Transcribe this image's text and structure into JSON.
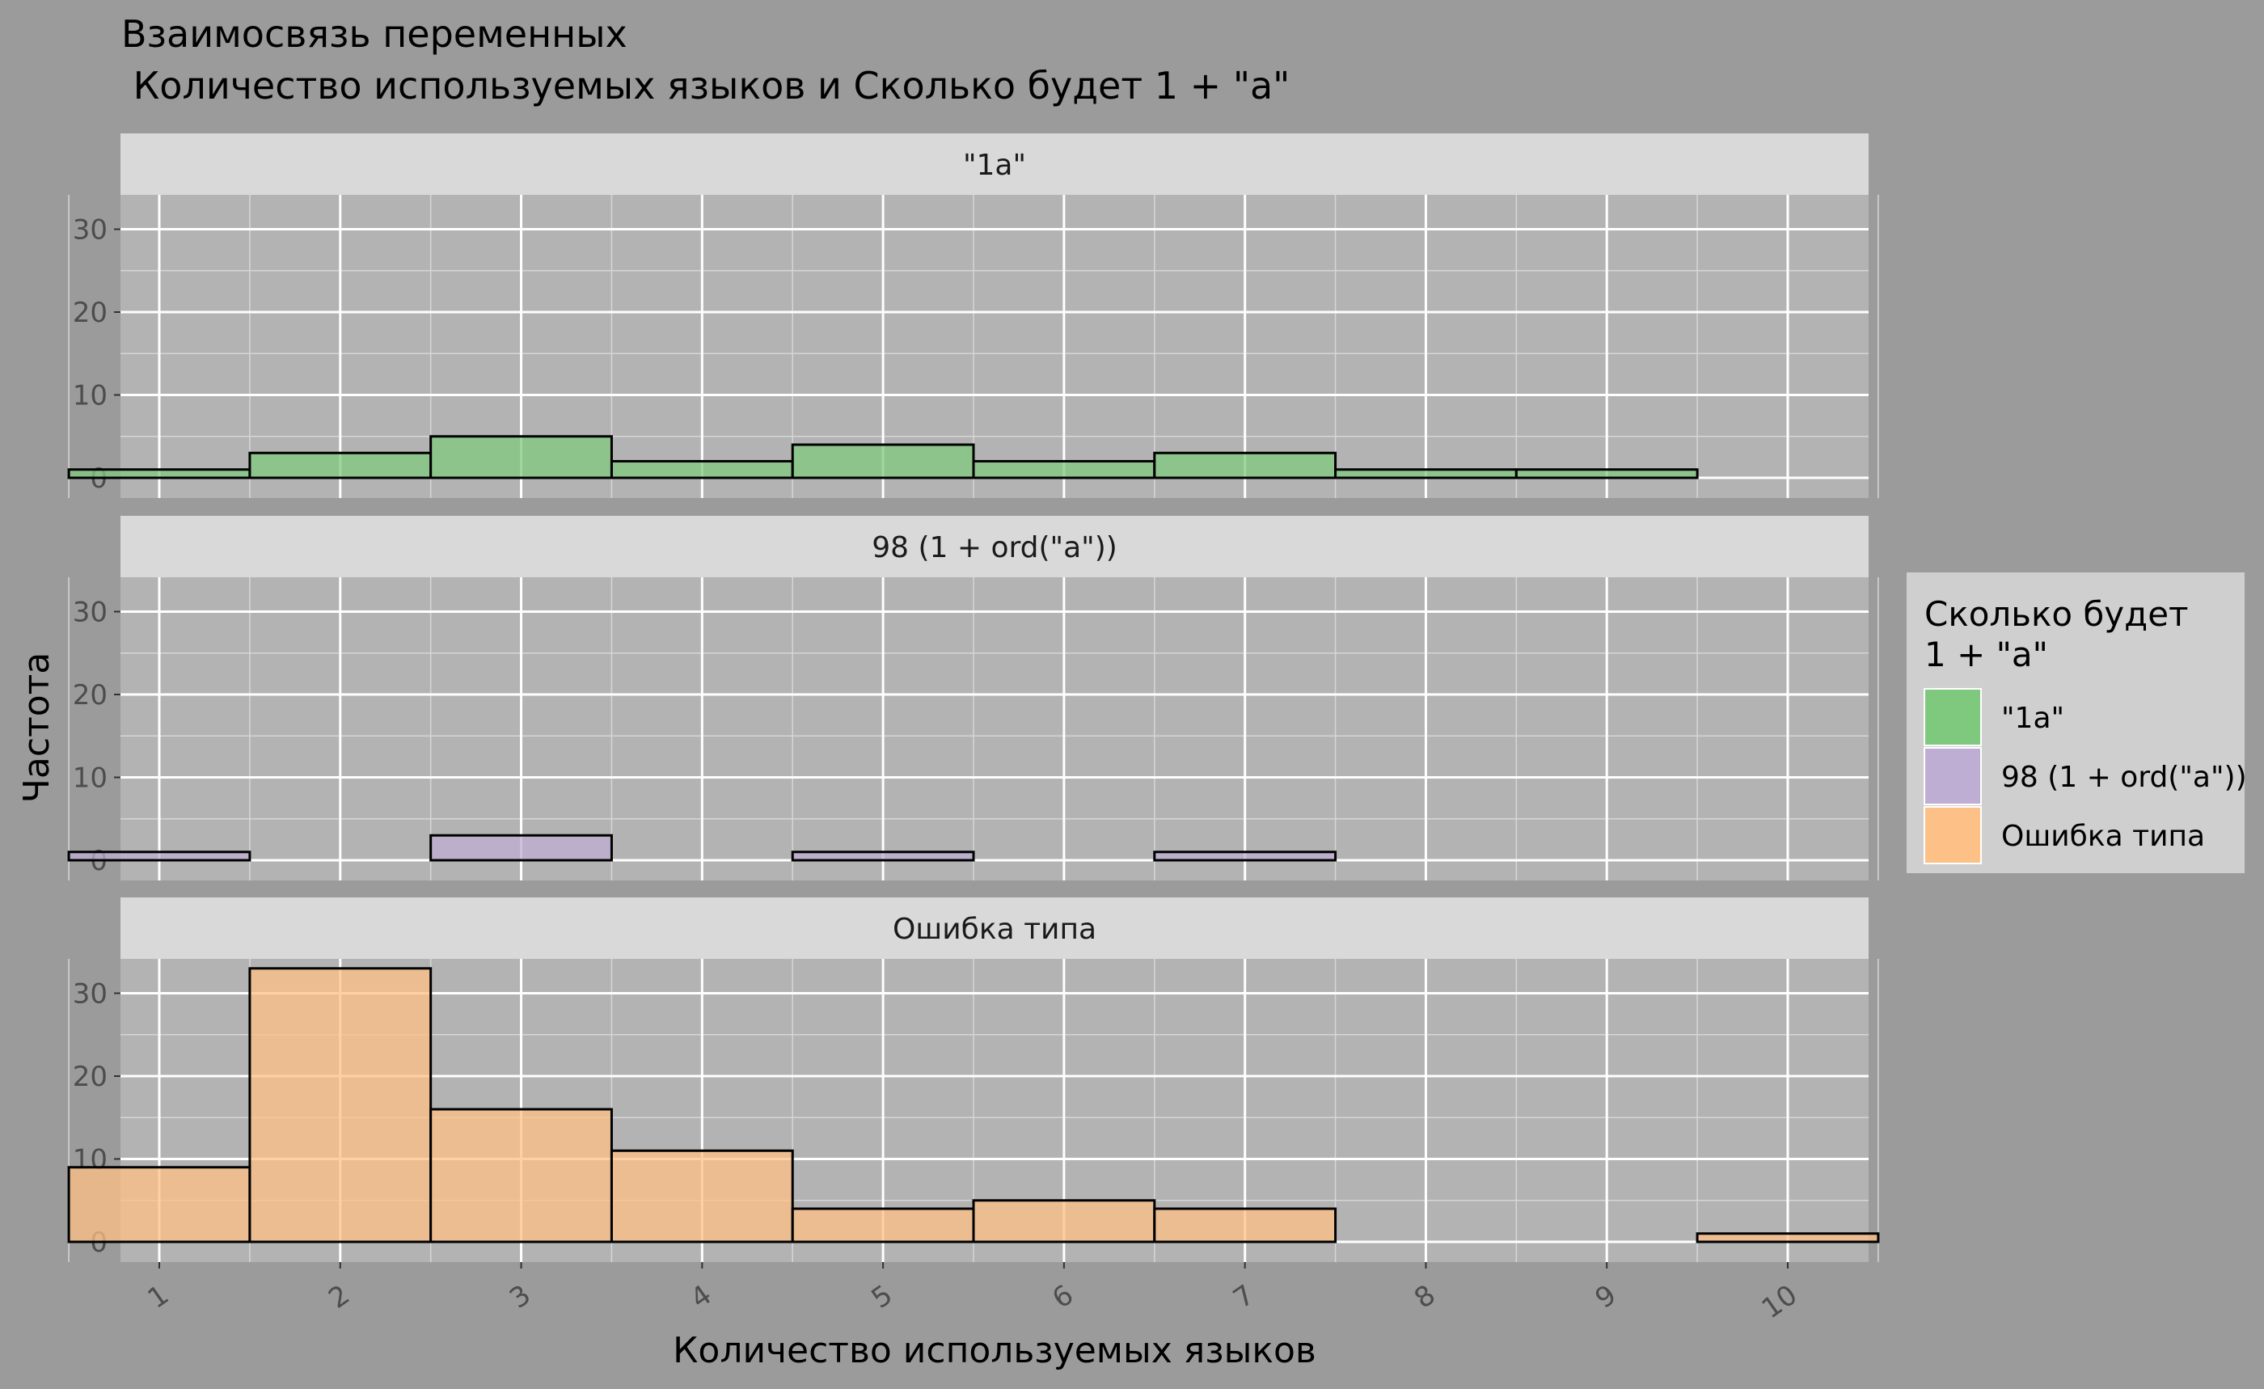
{
  "chart_data": {
    "type": "bar",
    "title_line1": "Взаимосвязь переменных",
    "title_line2": " Количество используемых языков и Сколько будет 1 + \"a\"",
    "xlabel": "Количество используемых языков",
    "ylabel": "Частота",
    "categories": [
      "1",
      "2",
      "3",
      "4",
      "5",
      "6",
      "7",
      "8",
      "9",
      "10"
    ],
    "ylim": [
      0,
      36
    ],
    "yticks": [
      0,
      10,
      20,
      30
    ],
    "grid": true,
    "legend_position": "right",
    "legend_title_line1": "Сколько будет",
    "legend_title_line2": "1 + \"a\"",
    "series": [
      {
        "name": "\"1a\"",
        "color": "#7fc97f",
        "values": [
          1,
          3,
          5,
          2,
          4,
          2,
          3,
          1,
          1,
          0
        ]
      },
      {
        "name": "98 (1 + ord(\"a\"))",
        "color": "#beaed4",
        "values": [
          1,
          0,
          3,
          0,
          1,
          0,
          1,
          0,
          0,
          0
        ]
      },
      {
        "name": "Ошибка типа",
        "color": "#fdc086",
        "values": [
          9,
          33,
          16,
          11,
          4,
          5,
          4,
          0,
          0,
          1
        ]
      }
    ]
  }
}
